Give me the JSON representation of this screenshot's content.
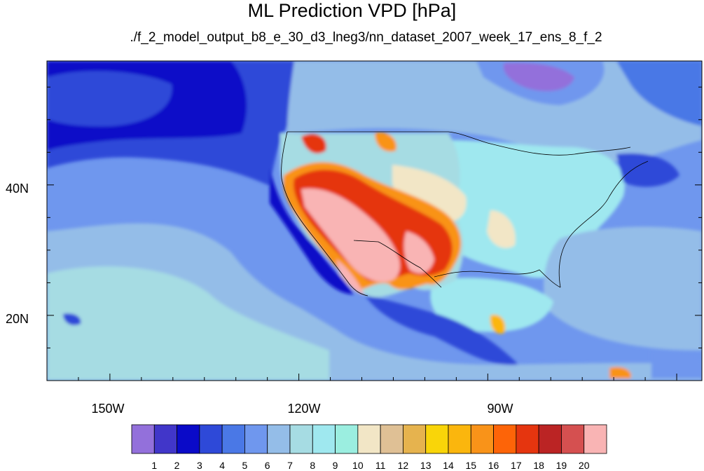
{
  "header": {
    "title": "ML Prediction VPD [hPa]",
    "subtitle": "./f_2_model_output_b8_e_30_d3_lneg3/nn_dataset_2007_week_17_ens_8_f_2"
  },
  "map": {
    "projection": "cylindrical equidistant",
    "lon_range": [
      -160,
      -56
    ],
    "lat_range": [
      10,
      59
    ],
    "lat_ticks": [
      {
        "value": 20,
        "label": "20N"
      },
      {
        "value": 40,
        "label": "40N"
      }
    ],
    "lon_ticks": [
      {
        "value": -150,
        "label": "150W"
      },
      {
        "value": -120,
        "label": "120W"
      },
      {
        "value": -90,
        "label": "90W"
      }
    ]
  },
  "colorbar": {
    "labels": [
      "1",
      "2",
      "3",
      "4",
      "5",
      "6",
      "7",
      "8",
      "9",
      "10",
      "11",
      "12",
      "13",
      "14",
      "15",
      "16",
      "17",
      "18",
      "19",
      "20"
    ],
    "colors": [
      "#9370db",
      "#4136c9",
      "#0a0ac8",
      "#2e49d8",
      "#4a78e6",
      "#6f97ee",
      "#94bde8",
      "#a6dce3",
      "#9fe8ef",
      "#9beee0",
      "#f2e6c6",
      "#dfc095",
      "#e6b34e",
      "#f9d509",
      "#fbb60d",
      "#f99319",
      "#fd6408",
      "#e5350f",
      "#bb2424",
      "#d55050",
      "#f9b4b4"
    ]
  }
}
